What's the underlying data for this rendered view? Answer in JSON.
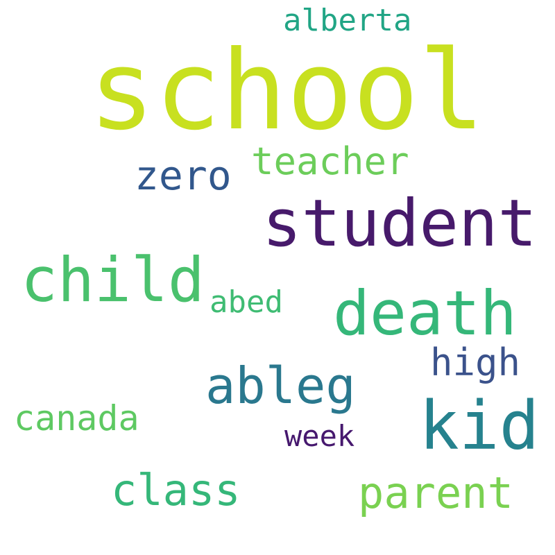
{
  "words": {
    "school": {
      "text": "school",
      "color": "#c8e020"
    },
    "student": {
      "text": "student",
      "color": "#471a6b"
    },
    "death": {
      "text": "death",
      "color": "#35b779"
    },
    "child": {
      "text": "child",
      "color": "#4ac16d"
    },
    "kid": {
      "text": "kid",
      "color": "#26828e"
    },
    "ableg": {
      "text": "ableg",
      "color": "#2a788e"
    },
    "parent": {
      "text": "parent",
      "color": "#7ad151"
    },
    "class": {
      "text": "class",
      "color": "#35b779"
    },
    "teacher": {
      "text": "teacher",
      "color": "#6ccd5a"
    },
    "zero": {
      "text": "zero",
      "color": "#31578c"
    },
    "high": {
      "text": "high",
      "color": "#3b528b"
    },
    "canada": {
      "text": "canada",
      "color": "#5ec962"
    },
    "abed": {
      "text": "abed",
      "color": "#3fbc73"
    },
    "alberta": {
      "text": "alberta",
      "color": "#21a585"
    },
    "week": {
      "text": "week",
      "color": "#46186e"
    }
  }
}
